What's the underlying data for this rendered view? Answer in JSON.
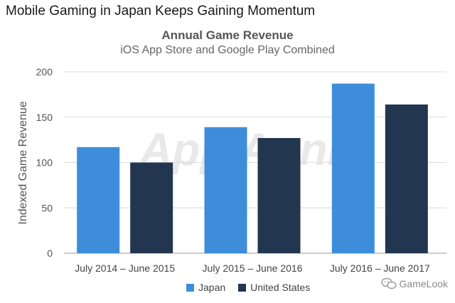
{
  "headline": "Mobile Gaming in Japan Keeps Gaining Momentum",
  "watermark": "App Annie",
  "brand": {
    "name": "GameLook",
    "icon": "chat-bubbles-icon"
  },
  "colors": {
    "japan": "#3d8ddb",
    "us": "#233650",
    "grid": "#dcdcdc",
    "axis": "#9a9a9a"
  },
  "chart_data": {
    "type": "bar",
    "title": "Annual Game Revenue",
    "subtitle": "iOS App Store and Google Play Combined",
    "xlabel": "",
    "ylabel": "Indexed Game Revenue",
    "ylim": [
      0,
      200
    ],
    "yticks": [
      0,
      50,
      100,
      150,
      200
    ],
    "grid": true,
    "legend_position": "bottom",
    "categories": [
      "July 2014 – June 2015",
      "July 2015 – June 2016",
      "July 2016 – June 2017"
    ],
    "series": [
      {
        "name": "Japan",
        "color": "#3d8ddb",
        "values": [
          117,
          139,
          187
        ]
      },
      {
        "name": "United States",
        "color": "#233650",
        "values": [
          100,
          127,
          164
        ]
      }
    ]
  }
}
